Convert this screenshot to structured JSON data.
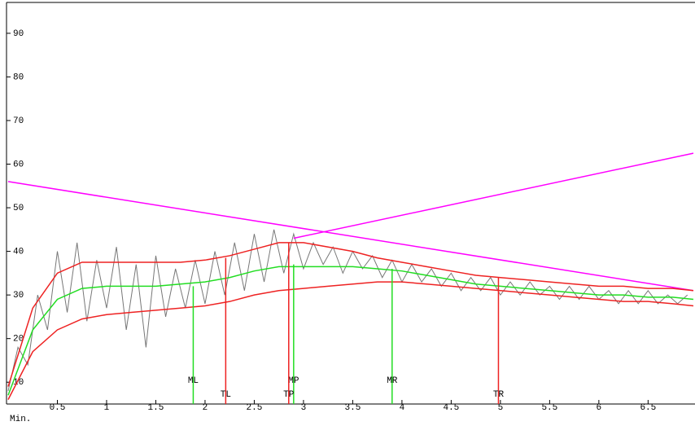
{
  "chart_data": {
    "type": "line",
    "x_label": "Min.",
    "xlim": [
      0,
      6.96
    ],
    "ylim": [
      5,
      96.7
    ],
    "xticks": [
      0.5,
      1,
      1.5,
      2,
      2.5,
      3,
      3.5,
      4,
      4.5,
      5,
      5.5,
      6,
      6.5
    ],
    "yticks": [
      10,
      20,
      30,
      40,
      50,
      60,
      70,
      80,
      90
    ],
    "series": [
      {
        "color": "#777777",
        "x": [
          0,
          0.1,
          0.2,
          0.3,
          0.4,
          0.5,
          0.6,
          0.7,
          0.8,
          0.9,
          1,
          1.1,
          1.2,
          1.3,
          1.4,
          1.5,
          1.6,
          1.7,
          1.8,
          1.9,
          2,
          2.1,
          2.2,
          2.3,
          2.4,
          2.5,
          2.6,
          2.7,
          2.8,
          2.9,
          3,
          3.1,
          3.2,
          3.3,
          3.4,
          3.5,
          3.6,
          3.7,
          3.8,
          3.9,
          4,
          4.1,
          4.2,
          4.3,
          4.4,
          4.5,
          4.6,
          4.7,
          4.8,
          4.9,
          5,
          5.1,
          5.2,
          5.3,
          5.4,
          5.5,
          5.6,
          5.7,
          5.8,
          5.9,
          6,
          6.1,
          6.2,
          6.3,
          6.4,
          6.5,
          6.6,
          6.7,
          6.8,
          6.9
        ],
        "values": [
          8,
          18,
          14,
          30,
          22,
          40,
          26,
          42,
          24,
          38,
          27,
          41,
          22,
          37,
          18,
          39,
          25,
          36,
          27,
          38,
          28,
          40,
          30,
          42,
          31,
          44,
          33,
          45,
          35,
          44,
          36,
          42,
          37,
          41,
          35,
          40,
          36,
          39,
          34,
          38,
          33,
          37,
          33,
          36,
          32,
          35,
          31,
          34,
          31,
          34,
          30,
          33,
          30,
          33,
          30,
          32,
          29,
          32,
          29,
          32,
          29,
          31,
          28,
          31,
          28,
          31,
          28,
          30,
          28,
          30
        ]
      },
      {
        "color": "#ff00ff",
        "x": [
          0,
          6.96
        ],
        "values": [
          56,
          31
        ]
      },
      {
        "color": "#ff00ff",
        "x": [
          2.9,
          6.96
        ],
        "values": [
          43,
          62.5
        ]
      },
      {
        "color": "#22dd22",
        "x": [
          0,
          0.25,
          0.5,
          0.75,
          1,
          1.25,
          1.5,
          1.75,
          2,
          2.25,
          2.5,
          2.75,
          3,
          3.25,
          3.5,
          3.75,
          4,
          4.25,
          4.5,
          4.75,
          5,
          5.25,
          5.5,
          5.75,
          6,
          6.25,
          6.5,
          6.75,
          6.96
        ],
        "values": [
          7,
          22,
          29,
          31.5,
          32,
          32,
          32,
          32.5,
          33,
          34,
          35.5,
          36.5,
          36.5,
          36.5,
          36.5,
          36,
          35.5,
          34.5,
          33.5,
          32.5,
          32,
          31.5,
          31,
          30.5,
          30,
          30,
          29.5,
          29.5,
          29
        ]
      },
      {
        "color": "#ee2222",
        "x": [
          0,
          0.25,
          0.5,
          0.75,
          1,
          1.25,
          1.5,
          1.75,
          2,
          2.25,
          2.5,
          2.75,
          3,
          3.25,
          3.5,
          3.75,
          4,
          4.25,
          4.5,
          4.75,
          5,
          5.25,
          5.5,
          5.75,
          6,
          6.25,
          6.5,
          6.75,
          6.96
        ],
        "values": [
          9,
          27,
          35,
          37.5,
          37.5,
          37.5,
          37.5,
          37.5,
          38,
          39,
          40.5,
          42,
          42,
          41,
          40,
          38.5,
          37.5,
          36.5,
          35.5,
          34.5,
          34,
          33.5,
          33,
          32.5,
          32,
          32,
          31.5,
          31.5,
          31
        ]
      },
      {
        "color": "#ee2222",
        "x": [
          0,
          0.25,
          0.5,
          0.75,
          1,
          1.25,
          1.5,
          1.75,
          2,
          2.25,
          2.5,
          2.75,
          3,
          3.25,
          3.5,
          3.75,
          4,
          4.25,
          4.5,
          4.75,
          5,
          5.25,
          5.5,
          5.75,
          6,
          6.25,
          6.5,
          6.75,
          6.96
        ],
        "values": [
          6,
          17,
          22,
          24.5,
          25.5,
          26,
          26.5,
          27,
          27.5,
          28.5,
          30,
          31,
          31.5,
          32,
          32.5,
          33,
          33,
          32.5,
          32,
          31.5,
          31,
          30.5,
          30,
          29.5,
          29,
          28.5,
          28.5,
          28,
          27.5
        ]
      }
    ],
    "markers": [
      {
        "label": "ML",
        "x": 1.88,
        "y": 32,
        "color": "#22dd22"
      },
      {
        "label": "TL",
        "x": 2.21,
        "y": 38.5,
        "color": "#ee2222"
      },
      {
        "label": "MP",
        "x": 2.9,
        "y": 37,
        "color": "#22dd22"
      },
      {
        "label": "TP",
        "x": 2.85,
        "y": 42,
        "color": "#ee2222"
      },
      {
        "label": "MR",
        "x": 3.9,
        "y": 36,
        "color": "#22dd22"
      },
      {
        "label": "TR",
        "x": 4.98,
        "y": 34,
        "color": "#ee2222"
      }
    ]
  }
}
